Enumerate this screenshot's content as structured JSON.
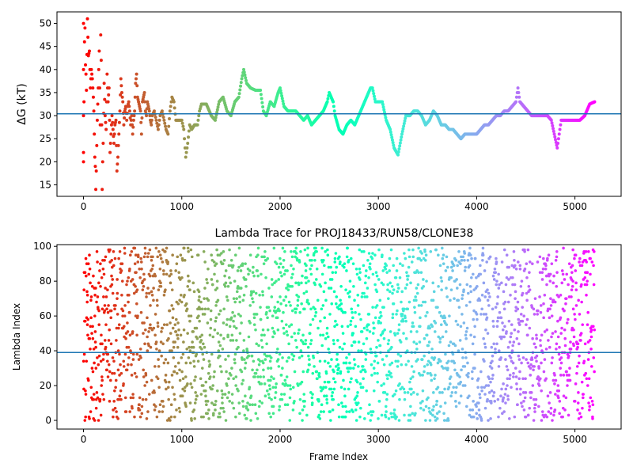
{
  "chart_data": [
    {
      "type": "scatter",
      "title": "",
      "xlabel": "",
      "ylabel": "ΔG (kT)",
      "xlim": [
        -270,
        5470
      ],
      "ylim": [
        12.5,
        52.5
      ],
      "xticks": [
        0,
        1000,
        2000,
        3000,
        4000,
        5000
      ],
      "xtick_labels": [
        "0",
        "1000",
        "2000",
        "3000",
        "4000",
        "5000"
      ],
      "yticks": [
        15,
        20,
        25,
        30,
        35,
        40,
        45,
        50
      ],
      "ytick_labels": [
        "15",
        "20",
        "25",
        "30",
        "35",
        "40",
        "45",
        "50"
      ],
      "hline": 30.4,
      "hline_color": "#1f77b4",
      "colormap": "rainbow (red at frame 0 to violet at frame 5200)",
      "marker_size": 3,
      "n_frames": 5200,
      "grid": false,
      "series": [
        {
          "points": [
            [
              0,
              50
            ],
            [
              0,
              40
            ],
            [
              0,
              30
            ],
            [
              0,
              22
            ],
            [
              0,
              20
            ],
            [
              10,
              46
            ],
            [
              15,
              49
            ],
            [
              20,
              41
            ],
            [
              25,
              39
            ],
            [
              30,
              35.5
            ],
            [
              40,
              51
            ],
            [
              45,
              47
            ],
            [
              50,
              43
            ],
            [
              60,
              44
            ],
            [
              70,
              36
            ],
            [
              80,
              40
            ],
            [
              90,
              38
            ],
            [
              100,
              34
            ],
            [
              105,
              31
            ],
            [
              110,
              26
            ],
            [
              115,
              21
            ],
            [
              120,
              19
            ],
            [
              125,
              14
            ],
            [
              130,
              18
            ],
            [
              140,
              29
            ],
            [
              150,
              36
            ],
            [
              160,
              44
            ],
            [
              170,
              28
            ],
            [
              175,
              47.5
            ],
            [
              180,
              42
            ],
            [
              190,
              14
            ],
            [
              195,
              20
            ],
            [
              200,
              24
            ],
            [
              210,
              37
            ],
            [
              220,
              30
            ],
            [
              230,
              27
            ],
            [
              240,
              39
            ],
            [
              250,
              33
            ],
            [
              260,
              36
            ],
            [
              270,
              22
            ],
            [
              280,
              26
            ],
            [
              290,
              30
            ],
            [
              300,
              27
            ],
            [
              310,
              24
            ],
            [
              320,
              28
            ],
            [
              330,
              29
            ],
            [
              340,
              18
            ],
            [
              350,
              21
            ],
            [
              360,
              26
            ],
            [
              370,
              31
            ],
            [
              380,
              38
            ],
            [
              390,
              35
            ],
            [
              400,
              33
            ],
            [
              410,
              28
            ],
            [
              420,
              31
            ],
            [
              430,
              32
            ],
            [
              440,
              29
            ],
            [
              450,
              32
            ],
            [
              460,
              33
            ],
            [
              470,
              31
            ],
            [
              480,
              28
            ],
            [
              490,
              30
            ],
            [
              500,
              26
            ],
            [
              510,
              29
            ],
            [
              520,
              31
            ],
            [
              530,
              37
            ],
            [
              540,
              39
            ],
            [
              550,
              34
            ],
            [
              560,
              33
            ],
            [
              570,
              32
            ],
            [
              580,
              31
            ],
            [
              590,
              26
            ],
            [
              600,
              33
            ],
            [
              610,
              34
            ],
            [
              620,
              35
            ],
            [
              630,
              31
            ],
            [
              640,
              30
            ],
            [
              650,
              33
            ],
            [
              660,
              32
            ],
            [
              670,
              31
            ],
            [
              680,
              29
            ],
            [
              690,
              28
            ],
            [
              700,
              30
            ],
            [
              720,
              31
            ],
            [
              740,
              29
            ],
            [
              760,
              27
            ],
            [
              780,
              30
            ],
            [
              800,
              31
            ],
            [
              820,
              29
            ],
            [
              840,
              27
            ],
            [
              860,
              26
            ],
            [
              880,
              31
            ],
            [
              900,
              34
            ],
            [
              920,
              33
            ],
            [
              940,
              29
            ],
            [
              960,
              29
            ],
            [
              980,
              29
            ],
            [
              1000,
              29
            ],
            [
              1020,
              27
            ],
            [
              1040,
              21
            ],
            [
              1060,
              24
            ],
            [
              1080,
              28
            ],
            [
              1100,
              27
            ],
            [
              1130,
              28
            ],
            [
              1160,
              28
            ],
            [
              1180,
              31
            ],
            [
              1200,
              32.5
            ],
            [
              1250,
              32.5
            ],
            [
              1300,
              30
            ],
            [
              1340,
              29
            ],
            [
              1380,
              33
            ],
            [
              1420,
              34
            ],
            [
              1460,
              31
            ],
            [
              1500,
              30
            ],
            [
              1540,
              33
            ],
            [
              1580,
              34
            ],
            [
              1610,
              38
            ],
            [
              1630,
              40
            ],
            [
              1660,
              37
            ],
            [
              1700,
              36
            ],
            [
              1750,
              35.5
            ],
            [
              1800,
              35.5
            ],
            [
              1830,
              31
            ],
            [
              1860,
              30
            ],
            [
              1900,
              33
            ],
            [
              1940,
              32
            ],
            [
              1980,
              35
            ],
            [
              2000,
              36
            ],
            [
              2040,
              32
            ],
            [
              2080,
              31
            ],
            [
              2120,
              31
            ],
            [
              2160,
              31
            ],
            [
              2200,
              30
            ],
            [
              2240,
              29
            ],
            [
              2280,
              30
            ],
            [
              2320,
              28
            ],
            [
              2360,
              29
            ],
            [
              2400,
              30
            ],
            [
              2440,
              31
            ],
            [
              2480,
              33
            ],
            [
              2500,
              35
            ],
            [
              2540,
              33
            ],
            [
              2560,
              30
            ],
            [
              2600,
              27
            ],
            [
              2640,
              26
            ],
            [
              2680,
              28
            ],
            [
              2720,
              29
            ],
            [
              2760,
              28
            ],
            [
              2800,
              30
            ],
            [
              2840,
              32
            ],
            [
              2880,
              34
            ],
            [
              2920,
              36
            ],
            [
              2940,
              36
            ],
            [
              2970,
              33
            ],
            [
              3000,
              33
            ],
            [
              3040,
              33
            ],
            [
              3080,
              29
            ],
            [
              3120,
              27
            ],
            [
              3160,
              23
            ],
            [
              3200,
              21.5
            ],
            [
              3240,
              26
            ],
            [
              3280,
              30
            ],
            [
              3320,
              30
            ],
            [
              3360,
              31
            ],
            [
              3400,
              31
            ],
            [
              3440,
              30
            ],
            [
              3480,
              28
            ],
            [
              3520,
              29
            ],
            [
              3560,
              31
            ],
            [
              3600,
              30
            ],
            [
              3640,
              28
            ],
            [
              3680,
              28
            ],
            [
              3720,
              27
            ],
            [
              3760,
              27
            ],
            [
              3800,
              26
            ],
            [
              3840,
              25
            ],
            [
              3880,
              26
            ],
            [
              3920,
              26
            ],
            [
              3960,
              26
            ],
            [
              4000,
              26
            ],
            [
              4040,
              27
            ],
            [
              4080,
              28
            ],
            [
              4120,
              28
            ],
            [
              4160,
              29
            ],
            [
              4200,
              30
            ],
            [
              4240,
              30
            ],
            [
              4280,
              31
            ],
            [
              4320,
              31
            ],
            [
              4360,
              32
            ],
            [
              4400,
              33
            ],
            [
              4420,
              36
            ],
            [
              4440,
              33
            ],
            [
              4480,
              32
            ],
            [
              4520,
              31
            ],
            [
              4560,
              30
            ],
            [
              4600,
              30
            ],
            [
              4640,
              30
            ],
            [
              4680,
              30
            ],
            [
              4720,
              30
            ],
            [
              4760,
              29
            ],
            [
              4790,
              26
            ],
            [
              4820,
              23
            ],
            [
              4840,
              26
            ],
            [
              4860,
              29
            ],
            [
              4900,
              29
            ],
            [
              4950,
              29
            ],
            [
              5000,
              29
            ],
            [
              5050,
              29
            ],
            [
              5100,
              30
            ],
            [
              5150,
              32.5
            ],
            [
              5200,
              33
            ]
          ]
        }
      ]
    },
    {
      "type": "scatter",
      "title": "Lambda Trace for PROJ18433/RUN58/CLONE38",
      "xlabel": "Frame Index",
      "ylabel": "Lambda Index",
      "xlim": [
        -270,
        5470
      ],
      "ylim": [
        -5,
        101
      ],
      "xticks": [
        0,
        1000,
        2000,
        3000,
        4000,
        5000
      ],
      "xtick_labels": [
        "0",
        "1000",
        "2000",
        "3000",
        "4000",
        "5000"
      ],
      "yticks": [
        0,
        20,
        40,
        60,
        80,
        100
      ],
      "ytick_labels": [
        "0",
        "20",
        "40",
        "60",
        "80",
        "100"
      ],
      "hline": 39,
      "hline_color": "#1f77b4",
      "colormap": "rainbow (red at frame 0 to violet at frame 5200)",
      "marker_size": 3,
      "n_frames": 5200,
      "lambda_range": [
        0,
        99
      ],
      "grid": false
    }
  ]
}
